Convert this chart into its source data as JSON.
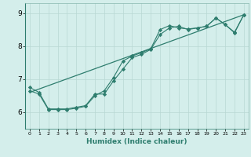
{
  "xlabel": "Humidex (Indice chaleur)",
  "background_color": "#d4eeeb",
  "line_color": "#2e7d6e",
  "grid_color": "#b8d8d4",
  "xlim": [
    -0.5,
    23.5
  ],
  "ylim": [
    5.5,
    9.3
  ],
  "xticks": [
    0,
    1,
    2,
    3,
    4,
    5,
    6,
    7,
    8,
    9,
    10,
    11,
    12,
    13,
    14,
    15,
    16,
    17,
    18,
    19,
    20,
    21,
    22,
    23
  ],
  "yticks": [
    6,
    7,
    8,
    9
  ],
  "line1_x": [
    0,
    1,
    2,
    3,
    4,
    5,
    6,
    7,
    8,
    9,
    10,
    11,
    12,
    13,
    14,
    15,
    16,
    17,
    18,
    19,
    20,
    21,
    22,
    23
  ],
  "line1_y": [
    6.75,
    6.6,
    6.1,
    6.1,
    6.1,
    6.15,
    6.2,
    6.55,
    6.55,
    6.95,
    7.3,
    7.65,
    7.75,
    7.9,
    8.35,
    8.55,
    8.6,
    8.5,
    8.55,
    8.6,
    8.85,
    8.65,
    8.4,
    8.95
  ],
  "line2_x": [
    0,
    1,
    2,
    3,
    4,
    5,
    6,
    7,
    8,
    9,
    10,
    11,
    12,
    13,
    14,
    15,
    16,
    17,
    18,
    19,
    20,
    21,
    22,
    23
  ],
  "line2_y": [
    6.65,
    6.55,
    6.08,
    6.08,
    6.08,
    6.12,
    6.18,
    6.5,
    6.65,
    7.05,
    7.55,
    7.7,
    7.8,
    7.92,
    8.5,
    8.62,
    8.55,
    8.52,
    8.55,
    8.6,
    8.85,
    8.65,
    8.42,
    8.95
  ],
  "line3_x": [
    0,
    23
  ],
  "line3_y": [
    6.6,
    8.95
  ]
}
